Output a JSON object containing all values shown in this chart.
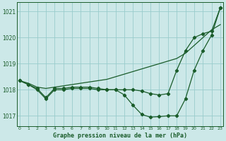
{
  "title": "Graphe pression niveau de la mer (hPa)",
  "background_color": "#cce8e8",
  "grid_color": "#99cccc",
  "line_color": "#1a5c2a",
  "x_values": [
    0,
    1,
    2,
    3,
    4,
    5,
    6,
    7,
    8,
    9,
    10,
    11,
    12,
    13,
    14,
    15,
    16,
    17,
    18,
    19,
    20,
    21,
    22,
    23
  ],
  "line_smooth": [
    1018.35,
    1018.25,
    1018.1,
    1018.05,
    1018.1,
    1018.15,
    1018.2,
    1018.25,
    1018.3,
    1018.35,
    1018.4,
    1018.5,
    1018.6,
    1018.7,
    1018.8,
    1018.9,
    1019.0,
    1019.1,
    1019.2,
    1019.4,
    1019.7,
    1020.0,
    1020.3,
    1020.5
  ],
  "line_mid": [
    1018.35,
    1018.2,
    1018.05,
    1017.7,
    1018.05,
    1018.05,
    1018.1,
    1018.1,
    1018.1,
    1018.05,
    1018.0,
    1018.0,
    1018.0,
    1018.0,
    1017.95,
    1017.85,
    1017.8,
    1017.85,
    1018.75,
    1019.5,
    1020.0,
    1020.15,
    1020.25,
    1021.15
  ],
  "line_low": [
    1018.35,
    1018.2,
    1018.0,
    1017.65,
    1018.0,
    1018.0,
    1018.05,
    1018.05,
    1018.05,
    1018.0,
    1018.0,
    1018.0,
    1017.8,
    1017.4,
    1017.05,
    1016.95,
    1016.97,
    1017.0,
    1017.0,
    1017.65,
    1018.75,
    1019.5,
    1020.1,
    1021.15
  ],
  "ylim": [
    1016.6,
    1021.35
  ],
  "yticks": [
    1017,
    1018,
    1019,
    1020,
    1021
  ],
  "xlim": [
    -0.3,
    23.3
  ],
  "figwidth": 3.2,
  "figheight": 2.0,
  "dpi": 100
}
